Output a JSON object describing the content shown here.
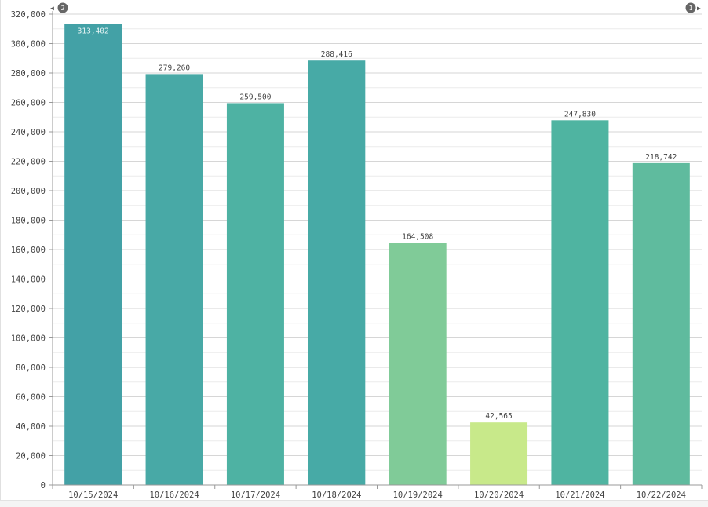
{
  "chart_data": {
    "type": "bar",
    "title": "",
    "xlabel": "",
    "ylabel": "",
    "categories": [
      "10/15/2024",
      "10/16/2024",
      "10/17/2024",
      "10/18/2024",
      "10/19/2024",
      "10/20/2024",
      "10/21/2024",
      "10/22/2024"
    ],
    "values": [
      313402,
      279260,
      259500,
      288416,
      164508,
      42565,
      247830,
      218742
    ],
    "value_labels": [
      "313,402",
      "279,260",
      "259,500",
      "288,416",
      "164,508",
      "42,565",
      "247,830",
      "218,742"
    ],
    "colors": [
      "#43a1a6",
      "#48a9a6",
      "#4eb2a3",
      "#47aaa6",
      "#80cb98",
      "#c8e98a",
      "#4fb4a1",
      "#5fbb9e"
    ],
    "ylim": [
      0,
      320000
    ],
    "y_ticks": [
      0,
      20000,
      40000,
      60000,
      80000,
      100000,
      120000,
      140000,
      160000,
      180000,
      200000,
      220000,
      240000,
      260000,
      280000,
      300000,
      320000
    ],
    "y_tick_labels": [
      "0",
      "20,000",
      "40,000",
      "60,000",
      "80,000",
      "100,000",
      "120,000",
      "140,000",
      "160,000",
      "180,000",
      "200,000",
      "220,000",
      "240,000",
      "260,000",
      "280,000",
      "300,000",
      "320,000"
    ],
    "grid": true,
    "legend": "none"
  },
  "pager": {
    "prev_icon": "triangle-left-icon",
    "prev_count": "2",
    "next_icon": "triangle-right-icon",
    "next_count": "1"
  }
}
